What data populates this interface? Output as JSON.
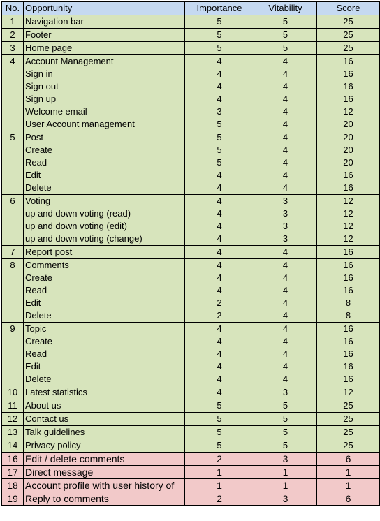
{
  "headers": [
    "No.",
    "Opportunity",
    "Importance",
    "Vitability",
    "Score"
  ],
  "rows": [
    {
      "no": "1",
      "opp": "Navigation bar",
      "imp": "5",
      "vit": "5",
      "score": "25",
      "start": true,
      "color": "green"
    },
    {
      "no": "2",
      "opp": "Footer",
      "imp": "5",
      "vit": "5",
      "score": "25",
      "start": true,
      "color": "green"
    },
    {
      "no": "3",
      "opp": "Home page",
      "imp": "5",
      "vit": "5",
      "score": "25",
      "start": true,
      "color": "green"
    },
    {
      "no": "4",
      "opp": "Account Management",
      "imp": "4",
      "vit": "4",
      "score": "16",
      "start": true,
      "color": "green"
    },
    {
      "no": "",
      "opp": "Sign in",
      "imp": "4",
      "vit": "4",
      "score": "16",
      "start": false,
      "color": "green"
    },
    {
      "no": "",
      "opp": "Sign out",
      "imp": "4",
      "vit": "4",
      "score": "16",
      "start": false,
      "color": "green"
    },
    {
      "no": "",
      "opp": "Sign up",
      "imp": "4",
      "vit": "4",
      "score": "16",
      "start": false,
      "color": "green"
    },
    {
      "no": "",
      "opp": "Welcome email",
      "imp": "3",
      "vit": "4",
      "score": "12",
      "start": false,
      "color": "green"
    },
    {
      "no": "",
      "opp": "User Account management",
      "imp": "5",
      "vit": "4",
      "score": "20",
      "start": false,
      "color": "green"
    },
    {
      "no": "5",
      "opp": "Post",
      "imp": "5",
      "vit": "4",
      "score": "20",
      "start": true,
      "color": "green"
    },
    {
      "no": "",
      "opp": "Create",
      "imp": "5",
      "vit": "4",
      "score": "20",
      "start": false,
      "color": "green"
    },
    {
      "no": "",
      "opp": "Read",
      "imp": "5",
      "vit": "4",
      "score": "20",
      "start": false,
      "color": "green"
    },
    {
      "no": "",
      "opp": "Edit",
      "imp": "4",
      "vit": "4",
      "score": "16",
      "start": false,
      "color": "green"
    },
    {
      "no": "",
      "opp": "Delete",
      "imp": "4",
      "vit": "4",
      "score": "16",
      "start": false,
      "color": "green"
    },
    {
      "no": "6",
      "opp": "Voting",
      "imp": "4",
      "vit": "3",
      "score": "12",
      "start": true,
      "color": "green"
    },
    {
      "no": "",
      "opp": "up and down voting (read)",
      "imp": "4",
      "vit": "3",
      "score": "12",
      "start": false,
      "color": "green"
    },
    {
      "no": "",
      "opp": "up and down voting (edit)",
      "imp": "4",
      "vit": "3",
      "score": "12",
      "start": false,
      "color": "green"
    },
    {
      "no": "",
      "opp": "up and down voting (change)",
      "imp": "4",
      "vit": "3",
      "score": "12",
      "start": false,
      "color": "green"
    },
    {
      "no": "7",
      "opp": "Report post",
      "imp": "4",
      "vit": "4",
      "score": "16",
      "start": true,
      "color": "green"
    },
    {
      "no": "8",
      "opp": "Comments",
      "imp": "4",
      "vit": "4",
      "score": "16",
      "start": true,
      "color": "green"
    },
    {
      "no": "",
      "opp": "Create",
      "imp": "4",
      "vit": "4",
      "score": "16",
      "start": false,
      "color": "green"
    },
    {
      "no": "",
      "opp": "Read",
      "imp": "4",
      "vit": "4",
      "score": "16",
      "start": false,
      "color": "green"
    },
    {
      "no": "",
      "opp": "Edit",
      "imp": "2",
      "vit": "4",
      "score": "8",
      "start": false,
      "color": "green"
    },
    {
      "no": "",
      "opp": "Delete",
      "imp": "2",
      "vit": "4",
      "score": "8",
      "start": false,
      "color": "green"
    },
    {
      "no": "9",
      "opp": "Topic",
      "imp": "4",
      "vit": "4",
      "score": "16",
      "start": true,
      "color": "green"
    },
    {
      "no": "",
      "opp": "Create",
      "imp": "4",
      "vit": "4",
      "score": "16",
      "start": false,
      "color": "green"
    },
    {
      "no": "",
      "opp": "Read",
      "imp": "4",
      "vit": "4",
      "score": "16",
      "start": false,
      "color": "green"
    },
    {
      "no": "",
      "opp": "Edit",
      "imp": "4",
      "vit": "4",
      "score": "16",
      "start": false,
      "color": "green"
    },
    {
      "no": "",
      "opp": "Delete",
      "imp": "4",
      "vit": "4",
      "score": "16",
      "start": false,
      "color": "green"
    },
    {
      "no": "10",
      "opp": "Latest statistics",
      "imp": "4",
      "vit": "3",
      "score": "12",
      "start": true,
      "color": "green"
    },
    {
      "no": "11",
      "opp": "About us",
      "imp": "5",
      "vit": "5",
      "score": "25",
      "start": true,
      "color": "green"
    },
    {
      "no": "12",
      "opp": "Contact us",
      "imp": "5",
      "vit": "5",
      "score": "25",
      "start": true,
      "color": "green"
    },
    {
      "no": "13",
      "opp": "Talk guidelines",
      "imp": "5",
      "vit": "5",
      "score": "25",
      "start": true,
      "color": "green"
    },
    {
      "no": "14",
      "opp": "Privacy policy",
      "imp": "5",
      "vit": "5",
      "score": "25",
      "start": true,
      "color": "green"
    },
    {
      "no": "16",
      "opp": "Edit / delete comments",
      "imp": "2",
      "vit": "3",
      "score": "6",
      "start": true,
      "color": "pink"
    },
    {
      "no": "17",
      "opp": "Direct message",
      "imp": "1",
      "vit": "1",
      "score": "1",
      "start": true,
      "color": "pink"
    },
    {
      "no": "18",
      "opp": "Account profile with user history of",
      "imp": "1",
      "vit": "1",
      "score": "1",
      "start": true,
      "color": "pink"
    },
    {
      "no": "19",
      "opp": "Reply to comments",
      "imp": "2",
      "vit": "3",
      "score": "6",
      "start": true,
      "color": "pink"
    }
  ],
  "colors": {
    "header": "#c5d9f1",
    "green": "#d7e4bc",
    "pink": "#f2c9c9"
  }
}
